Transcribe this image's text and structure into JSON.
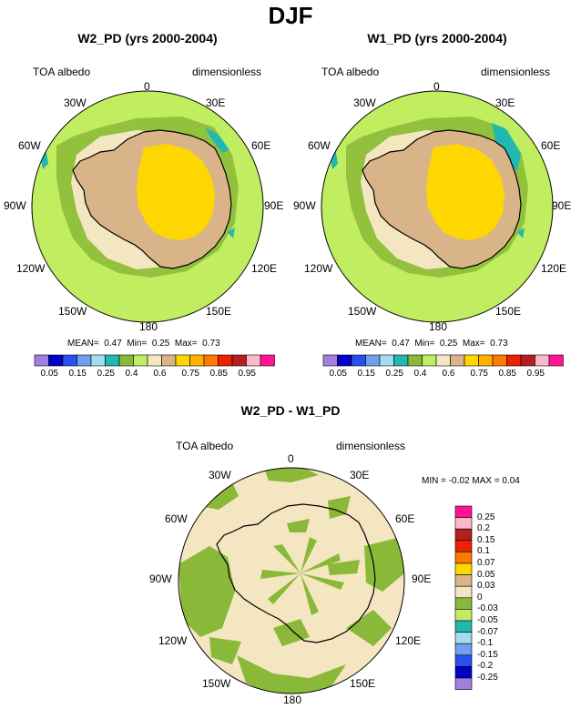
{
  "figure": {
    "title": "DJF"
  },
  "panels": [
    {
      "title": "W2_PD (yrs 2000-2004)",
      "left_label": "TOA albedo",
      "right_label": "dimensionless",
      "stats": {
        "mean_label": "MEAN=",
        "mean": "0.47",
        "min_label": "Min=",
        "min": "0.25",
        "max_label": "Max=",
        "max": "0.73"
      }
    },
    {
      "title": "W1_PD (yrs 2000-2004)",
      "left_label": "TOA albedo",
      "right_label": "dimensionless",
      "stats": {
        "mean_label": "MEAN=",
        "mean": "0.47",
        "min_label": "Min=",
        "min": "0.25",
        "max_label": "Max=",
        "max": "0.73"
      }
    },
    {
      "title": "W2_PD - W1_PD",
      "left_label": "TOA albedo",
      "right_label": "dimensionless",
      "stats_text": "MIN = -0.02  MAX =  0.04"
    }
  ],
  "longitude_labels": [
    "0",
    "30E",
    "60E",
    "90E",
    "120E",
    "150E",
    "180",
    "150W",
    "120W",
    "90W",
    "60W",
    "30W"
  ],
  "colorbar_horizontal": {
    "colors": [
      "#9f7fdf",
      "#0000c8",
      "#2850ee",
      "#6ea0ee",
      "#a4dcee",
      "#20b8b0",
      "#8ab838",
      "#c0ee60",
      "#f4e6c0",
      "#d8b488",
      "#ffd700",
      "#ffb000",
      "#ff7a00",
      "#ee2000",
      "#b41e1e",
      "#ffb8c8",
      "#ff1493"
    ],
    "labels": [
      "0.05",
      "0.15",
      "0.25",
      "0.4",
      "0.6",
      "0.75",
      "0.85",
      "0.95"
    ]
  },
  "colorbar_vertical": {
    "colors": [
      "#ff1493",
      "#ffb8c8",
      "#b41e1e",
      "#ee2000",
      "#ff7a00",
      "#ffd700",
      "#d8b488",
      "#f4e6c0",
      "#8ab838",
      "#c0ee60",
      "#20b8b0",
      "#a4dcee",
      "#6ea0ee",
      "#2850ee",
      "#0000c8",
      "#9f7fdf"
    ],
    "labels": [
      "0.25",
      "0.2",
      "0.15",
      "0.1",
      "0.07",
      "0.05",
      "0.03",
      "0",
      "-0.03",
      "-0.05",
      "-0.07",
      "-0.1",
      "-0.15",
      "-0.2",
      "-0.25"
    ]
  }
}
